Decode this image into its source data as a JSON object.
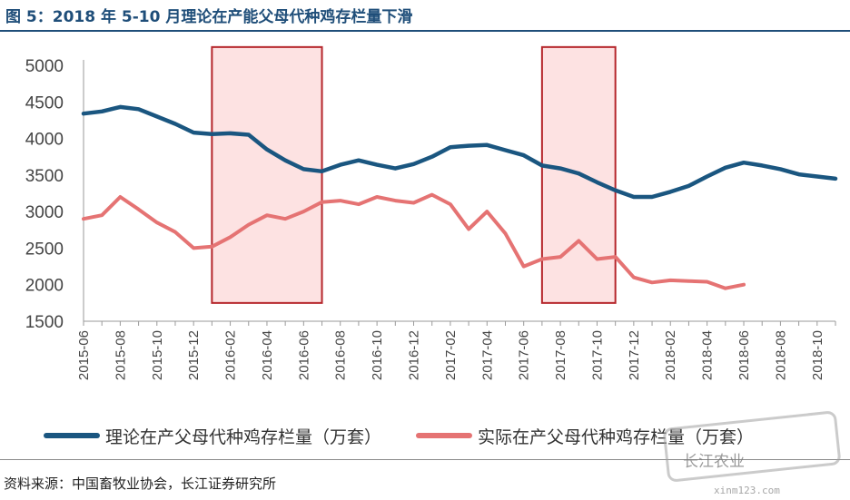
{
  "title": "图 5：2018 年 5-10 月理论在产能父母代种鸡存栏量下滑",
  "source": "资料来源：中国畜牧业协会，长江证券研究所",
  "watermark": {
    "name": "长江农业",
    "url": "xinm123.com"
  },
  "colors": {
    "theory": "#1a5680",
    "actual": "#e57373",
    "band_fill": "#fde2e2",
    "band_stroke": "#b5262b",
    "title": "#1f4e79"
  },
  "chart_data": {
    "type": "line",
    "title": "",
    "xlabel": "",
    "ylabel": "",
    "ylim": [
      1500,
      5000
    ],
    "yticks": [
      1500,
      2000,
      2500,
      3000,
      3500,
      4000,
      4500,
      5000
    ],
    "xticks": [
      "2015-06",
      "2015-08",
      "2015-10",
      "2015-12",
      "2016-02",
      "2016-04",
      "2016-06",
      "2016-08",
      "2016-10",
      "2016-12",
      "2017-02",
      "2017-04",
      "2017-06",
      "2017-08",
      "2017-10",
      "2017-12",
      "2018-02",
      "2018-04",
      "2018-06",
      "2018-08",
      "2018-10"
    ],
    "x_range": [
      "2015-06",
      "2018-11"
    ],
    "grid": false,
    "legend_position": "bottom",
    "highlight_bands": [
      {
        "from": "2016-01",
        "to": "2016-07",
        "y_from": 1750,
        "y_to": 5250
      },
      {
        "from": "2017-07",
        "to": "2017-11",
        "y_from": 1750,
        "y_to": 5250
      }
    ],
    "series": [
      {
        "name": "理论在产父母代种鸡存栏量（万套）",
        "color": "#1a5680",
        "points": [
          [
            "2015-06",
            4340
          ],
          [
            "2015-07",
            4370
          ],
          [
            "2015-08",
            4430
          ],
          [
            "2015-09",
            4400
          ],
          [
            "2015-10",
            4300
          ],
          [
            "2015-11",
            4200
          ],
          [
            "2015-12",
            4080
          ],
          [
            "2016-01",
            4060
          ],
          [
            "2016-02",
            4070
          ],
          [
            "2016-03",
            4050
          ],
          [
            "2016-04",
            3850
          ],
          [
            "2016-05",
            3700
          ],
          [
            "2016-06",
            3580
          ],
          [
            "2016-07",
            3550
          ],
          [
            "2016-08",
            3640
          ],
          [
            "2016-09",
            3700
          ],
          [
            "2016-10",
            3640
          ],
          [
            "2016-11",
            3590
          ],
          [
            "2016-12",
            3650
          ],
          [
            "2017-01",
            3750
          ],
          [
            "2017-02",
            3880
          ],
          [
            "2017-03",
            3900
          ],
          [
            "2017-04",
            3910
          ],
          [
            "2017-05",
            3840
          ],
          [
            "2017-06",
            3770
          ],
          [
            "2017-07",
            3630
          ],
          [
            "2017-08",
            3590
          ],
          [
            "2017-09",
            3520
          ],
          [
            "2017-10",
            3400
          ],
          [
            "2017-11",
            3290
          ],
          [
            "2017-12",
            3200
          ],
          [
            "2018-01",
            3200
          ],
          [
            "2018-02",
            3270
          ],
          [
            "2018-03",
            3350
          ],
          [
            "2018-04",
            3480
          ],
          [
            "2018-05",
            3600
          ],
          [
            "2018-06",
            3670
          ],
          [
            "2018-07",
            3630
          ],
          [
            "2018-08",
            3580
          ],
          [
            "2018-09",
            3510
          ],
          [
            "2018-10",
            3480
          ],
          [
            "2018-11",
            3450
          ]
        ]
      },
      {
        "name": "实际在产父母代种鸡存栏量（万套）",
        "color": "#e57373",
        "points": [
          [
            "2015-06",
            2900
          ],
          [
            "2015-07",
            2950
          ],
          [
            "2015-08",
            3200
          ],
          [
            "2015-09",
            3030
          ],
          [
            "2015-10",
            2850
          ],
          [
            "2015-11",
            2720
          ],
          [
            "2015-12",
            2500
          ],
          [
            "2016-01",
            2520
          ],
          [
            "2016-02",
            2650
          ],
          [
            "2016-03",
            2820
          ],
          [
            "2016-04",
            2950
          ],
          [
            "2016-05",
            2900
          ],
          [
            "2016-06",
            3000
          ],
          [
            "2016-07",
            3130
          ],
          [
            "2016-08",
            3150
          ],
          [
            "2016-09",
            3100
          ],
          [
            "2016-10",
            3200
          ],
          [
            "2016-11",
            3150
          ],
          [
            "2016-12",
            3120
          ],
          [
            "2017-01",
            3230
          ],
          [
            "2017-02",
            3100
          ],
          [
            "2017-03",
            2760
          ],
          [
            "2017-04",
            3000
          ],
          [
            "2017-05",
            2700
          ],
          [
            "2017-06",
            2250
          ],
          [
            "2017-07",
            2350
          ],
          [
            "2017-08",
            2380
          ],
          [
            "2017-09",
            2600
          ],
          [
            "2017-10",
            2350
          ],
          [
            "2017-11",
            2380
          ],
          [
            "2017-12",
            2100
          ],
          [
            "2018-01",
            2030
          ],
          [
            "2018-02",
            2060
          ],
          [
            "2018-03",
            2050
          ],
          [
            "2018-04",
            2040
          ],
          [
            "2018-05",
            1950
          ],
          [
            "2018-06",
            2000
          ]
        ]
      }
    ]
  }
}
